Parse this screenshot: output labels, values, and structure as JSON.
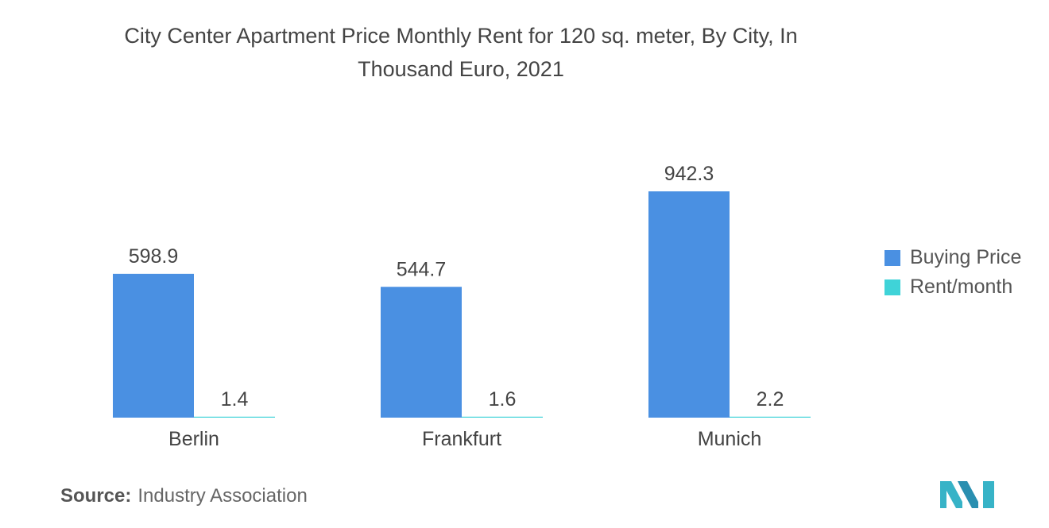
{
  "title_line1": "City Center Apartment Price Monthly Rent for 120 sq. meter, By City, In",
  "title_line2": "Thousand Euro, 2021",
  "source_label": "Source:",
  "source_text": "Industry Association",
  "colors": {
    "buying": "#4a90e2",
    "rent": "#3fd3d8",
    "text": "#444444",
    "logo": "#37b3c7"
  },
  "chart_data": {
    "type": "bar",
    "title": "City Center Apartment Price Monthly Rent for 120 sq. meter, By City, In Thousand Euro, 2021",
    "categories": [
      "Berlin",
      "Frankfurt",
      "Munich"
    ],
    "series": [
      {
        "name": "Buying Price",
        "values": [
          598.9,
          544.7,
          942.3
        ]
      },
      {
        "name": "Rent/month",
        "values": [
          1.4,
          1.6,
          2.2
        ]
      }
    ],
    "value_labels": [
      [
        "598.9",
        "544.7",
        "942.3"
      ],
      [
        "1.4",
        "1.6",
        "2.2"
      ]
    ],
    "ylim": [
      0,
      942.3
    ],
    "grid": false,
    "legend": "right"
  }
}
